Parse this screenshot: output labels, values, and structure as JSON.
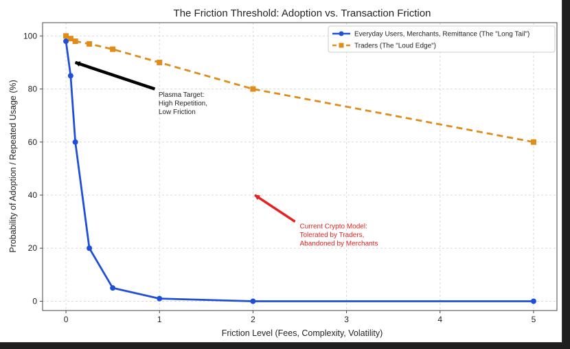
{
  "chart_data": {
    "type": "line",
    "title": "The Friction Threshold: Adoption vs. Transaction Friction",
    "xlabel": "Friction Level (Fees, Complexity, Volatility)",
    "ylabel": "Probability of Adoption / Repeated Usage (%)",
    "xlim": [
      -0.25,
      5.25
    ],
    "ylim": [
      -3.5,
      105
    ],
    "xticks": [
      0,
      1,
      2,
      3,
      4,
      5
    ],
    "yticks": [
      0,
      20,
      40,
      60,
      80,
      100
    ],
    "grid": true,
    "legend_position": "top-right",
    "series": [
      {
        "name": "Everyday Users, Merchants, Remittance (The \"Long Tail\")",
        "color": "#1f4fd8",
        "style": "solid",
        "marker": "circle",
        "points": [
          [
            0,
            98
          ],
          [
            0.05,
            85
          ],
          [
            0.1,
            60
          ],
          [
            0.25,
            20
          ],
          [
            0.5,
            5
          ],
          [
            1,
            1
          ],
          [
            2,
            0
          ],
          [
            5,
            0
          ]
        ]
      },
      {
        "name": "Traders (The \"Loud Edge\")",
        "color": "#e08c1a",
        "style": "dashed",
        "marker": "square",
        "points": [
          [
            0,
            100
          ],
          [
            0.05,
            99
          ],
          [
            0.1,
            98
          ],
          [
            0.25,
            97
          ],
          [
            0.5,
            95
          ],
          [
            1,
            90
          ],
          [
            2,
            80
          ],
          [
            5,
            60
          ]
        ]
      }
    ],
    "annotations": [
      {
        "lines": [
          "Plasma Target:",
          "High Repetition,",
          "Low Friction"
        ],
        "color": "#222222",
        "arrow_color": "#000000",
        "arrow_head": [
          0.1,
          90
        ],
        "arrow_tail": [
          0.95,
          80
        ],
        "text_at": [
          0.99,
          77
        ]
      },
      {
        "lines": [
          "Current Crypto Model:",
          "Tolerated by Traders,",
          "Abandoned by Merchants"
        ],
        "color": "#e32222",
        "arrow_color": "#e32222",
        "arrow_head": [
          2.02,
          40
        ],
        "arrow_tail": [
          2.45,
          30
        ],
        "text_at": [
          2.5,
          27.5
        ]
      }
    ]
  }
}
